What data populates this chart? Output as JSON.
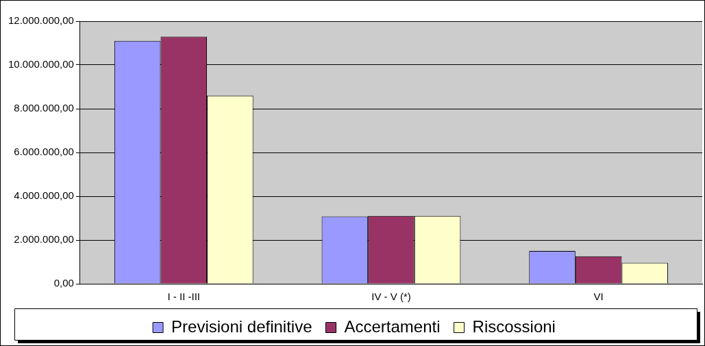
{
  "chart_data": {
    "type": "bar",
    "categories": [
      "I - II -III",
      "IV - V (*)",
      "VI"
    ],
    "series": [
      {
        "name": "Previsioni definitive",
        "color": "#9999ff",
        "values": [
          11100000,
          3080000,
          1500000
        ]
      },
      {
        "name": "Accertamenti",
        "color": "#993366",
        "values": [
          11300000,
          3100000,
          1260000
        ]
      },
      {
        "name": "Riscossioni",
        "color": "#ffffcc",
        "values": [
          8600000,
          3100000,
          950000
        ]
      }
    ],
    "ylim": [
      0,
      12000000
    ],
    "yticks": [
      {
        "value": 0,
        "label": "0,00"
      },
      {
        "value": 2000000,
        "label": "2.000.000,00"
      },
      {
        "value": 4000000,
        "label": "4.000.000,00"
      },
      {
        "value": 6000000,
        "label": "6.000.000,00"
      },
      {
        "value": 8000000,
        "label": "8.000.000,00"
      },
      {
        "value": 10000000,
        "label": "10.000.000,00"
      },
      {
        "value": 12000000,
        "label": "12.000.000,00"
      }
    ],
    "grid": "y",
    "legend": "bottom"
  }
}
